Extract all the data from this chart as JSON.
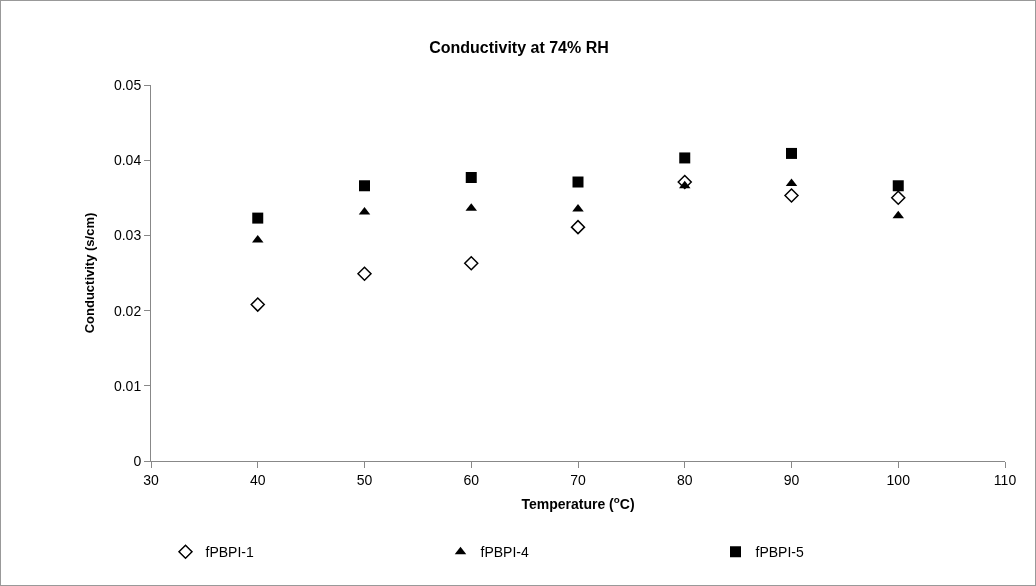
{
  "chart_data": {
    "type": "scatter",
    "title": "Conductivity at 74% RH",
    "xlabel": "Temperature ($^{o}$C)",
    "ylabel": "Conductivity (s/cm)",
    "x": [
      40,
      50,
      60,
      70,
      80,
      90,
      100
    ],
    "series": [
      {
        "name": "fPBPI-1",
        "color": "#ffffff",
        "marker": "diamond",
        "values": [
          0.0208,
          0.0249,
          0.0263,
          0.0311,
          0.0371,
          0.0353,
          0.035
        ]
      },
      {
        "name": "fPBPI-4",
        "color": "#000000",
        "marker": "triangle",
        "values": [
          0.0294,
          0.0331,
          0.0336,
          0.0335,
          0.0366,
          0.0369,
          0.0326
        ]
      },
      {
        "name": "fPBPI-5",
        "color": "#000000",
        "marker": "square",
        "values": [
          0.0323,
          0.0366,
          0.0377,
          0.0371,
          0.0403,
          0.0409,
          0.0366
        ]
      }
    ],
    "xlim": [
      30,
      110
    ],
    "xticks": [
      30,
      40,
      50,
      60,
      70,
      80,
      90,
      100,
      110
    ],
    "ylim": [
      0,
      0.05
    ],
    "yticks": [
      0,
      0.01,
      0.02,
      0.03,
      0.04,
      0.05
    ],
    "grid": false,
    "legend": "bottom"
  }
}
